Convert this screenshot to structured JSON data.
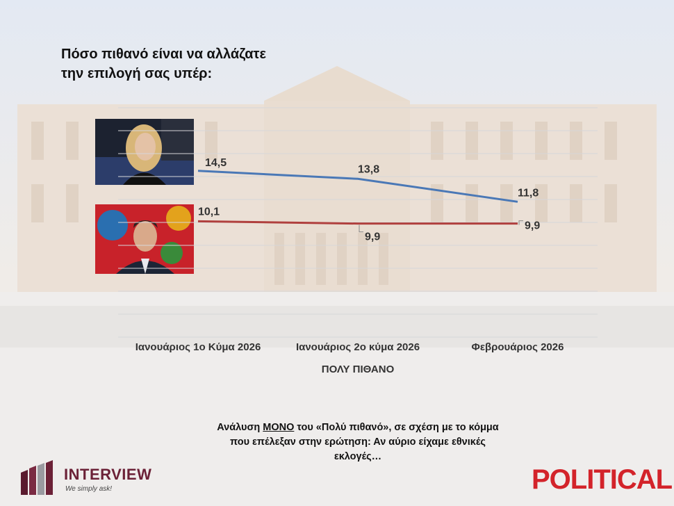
{
  "header": {
    "title_line1": "Πόσο πιθανό είναι να αλλάζατε",
    "title_line2": "την επιλογή σας υπέρ:"
  },
  "chart_data": {
    "type": "line",
    "categories": [
      "Ιανουάριος 1ο Κύμα 2026",
      "Ιανουάριος 2ο κύμα 2026",
      "Φεβρουάριος 2026"
    ],
    "series": [
      {
        "values": [
          14.5,
          13.8,
          11.8
        ],
        "labels": [
          "14,5",
          "13,8",
          "11,8"
        ],
        "color": "#4a78b6"
      },
      {
        "values": [
          10.1,
          9.9,
          9.9
        ],
        "labels": [
          "10,1",
          "9,9",
          "9,9"
        ],
        "color": "#b0403e"
      }
    ],
    "xlabel": "ΠΟΛΥ ΠΙΘΑΝΟ",
    "ylim": [
      0,
      20
    ],
    "grid": true
  },
  "note": {
    "before": "Ανάλυση ",
    "emphasis": "ΜΟΝΟ",
    "after": " του «Πολύ πιθανό», σε σχέση με το κόμμα που επέλεξαν στην ερώτηση: Αν αύριο είχαμε εθνικές εκλογές…"
  },
  "logos": {
    "interview_name": "INTERVIEW",
    "interview_tagline": "We simply ask!",
    "political": "POLITICAL"
  }
}
